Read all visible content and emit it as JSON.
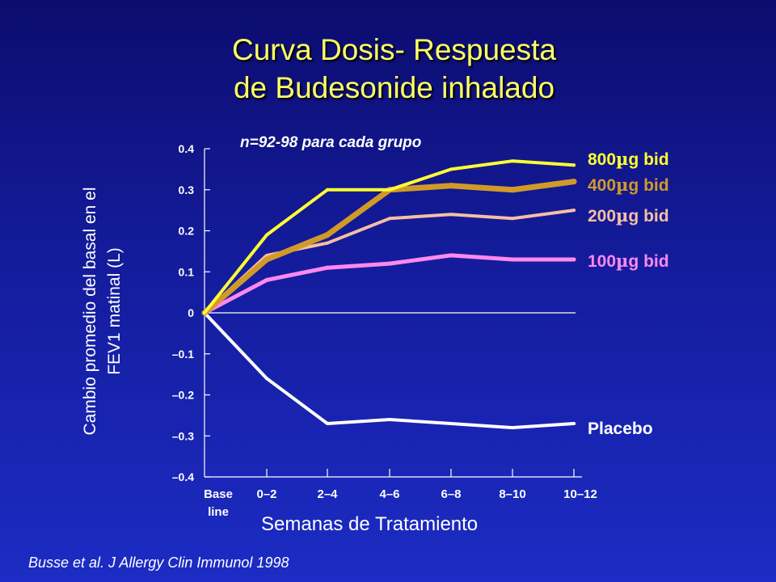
{
  "slide": {
    "title_line1": "Curva Dosis- Respuesta",
    "title_line2": "de Budesonide inhalado",
    "note": "n=92-98 para cada grupo",
    "citation": "Busse et al.  J Allergy Clin Immunol 1998"
  },
  "chart_data": {
    "type": "line",
    "xlabel": "Semanas de Tratamiento",
    "ylabel_lines": [
      "Cambio promedio del basal en el",
      "FEV1 matinal (L)"
    ],
    "categories": [
      "Base line",
      "0–2",
      "2–4",
      "4–6",
      "6–8",
      "8–10",
      "10–12"
    ],
    "category_label_lines": [
      [
        "Base",
        "line"
      ],
      [
        "0–2"
      ],
      [
        "2–4"
      ],
      [
        "4–6"
      ],
      [
        "6–8"
      ],
      [
        "8–10"
      ],
      [
        "10–12"
      ]
    ],
    "ylim": [
      -0.4,
      0.4
    ],
    "yticks": [
      0.4,
      0.3,
      0.2,
      0.1,
      0,
      -0.1,
      -0.2,
      -0.3,
      -0.4
    ],
    "ytick_labels": [
      "0.4",
      "0.3",
      "0.2",
      "0.1",
      "0",
      "–0.1",
      "–0.2",
      "–0.3",
      "–0.4"
    ],
    "grid": false,
    "legend": "right, labels at line ends",
    "series": [
      {
        "name": "Placebo",
        "color": "#ffffff",
        "values": [
          0,
          -0.16,
          -0.27,
          -0.26,
          -0.27,
          -0.28,
          -0.27
        ]
      },
      {
        "name": "100µg bid",
        "color": "#ff88ee",
        "values": [
          0,
          0.08,
          0.11,
          0.12,
          0.14,
          0.13,
          0.13
        ]
      },
      {
        "name": "200µg bid",
        "color": "#f5bfa3",
        "values": [
          0,
          0.14,
          0.17,
          0.23,
          0.24,
          0.23,
          0.25
        ]
      },
      {
        "name": "400µg bid",
        "color": "#d19a28",
        "values": [
          0,
          0.13,
          0.19,
          0.3,
          0.31,
          0.3,
          0.32
        ]
      },
      {
        "name": "800µg bid",
        "color": "#ffff33",
        "values": [
          0,
          0.19,
          0.3,
          0.3,
          0.35,
          0.37,
          0.36
        ]
      }
    ],
    "series_labels": [
      {
        "number": "800",
        "unit": "g bid",
        "color": "#ffff33"
      },
      {
        "number": "400",
        "unit": "g bid",
        "color": "#d19a28"
      },
      {
        "number": "200",
        "unit": "g bid",
        "color": "#f5bfa3"
      },
      {
        "number": "100",
        "unit": "g bid",
        "color": "#ff88ee"
      },
      {
        "number": "Placebo",
        "unit": "",
        "color": "#ffffff"
      }
    ],
    "mu_symbol": "m"
  }
}
